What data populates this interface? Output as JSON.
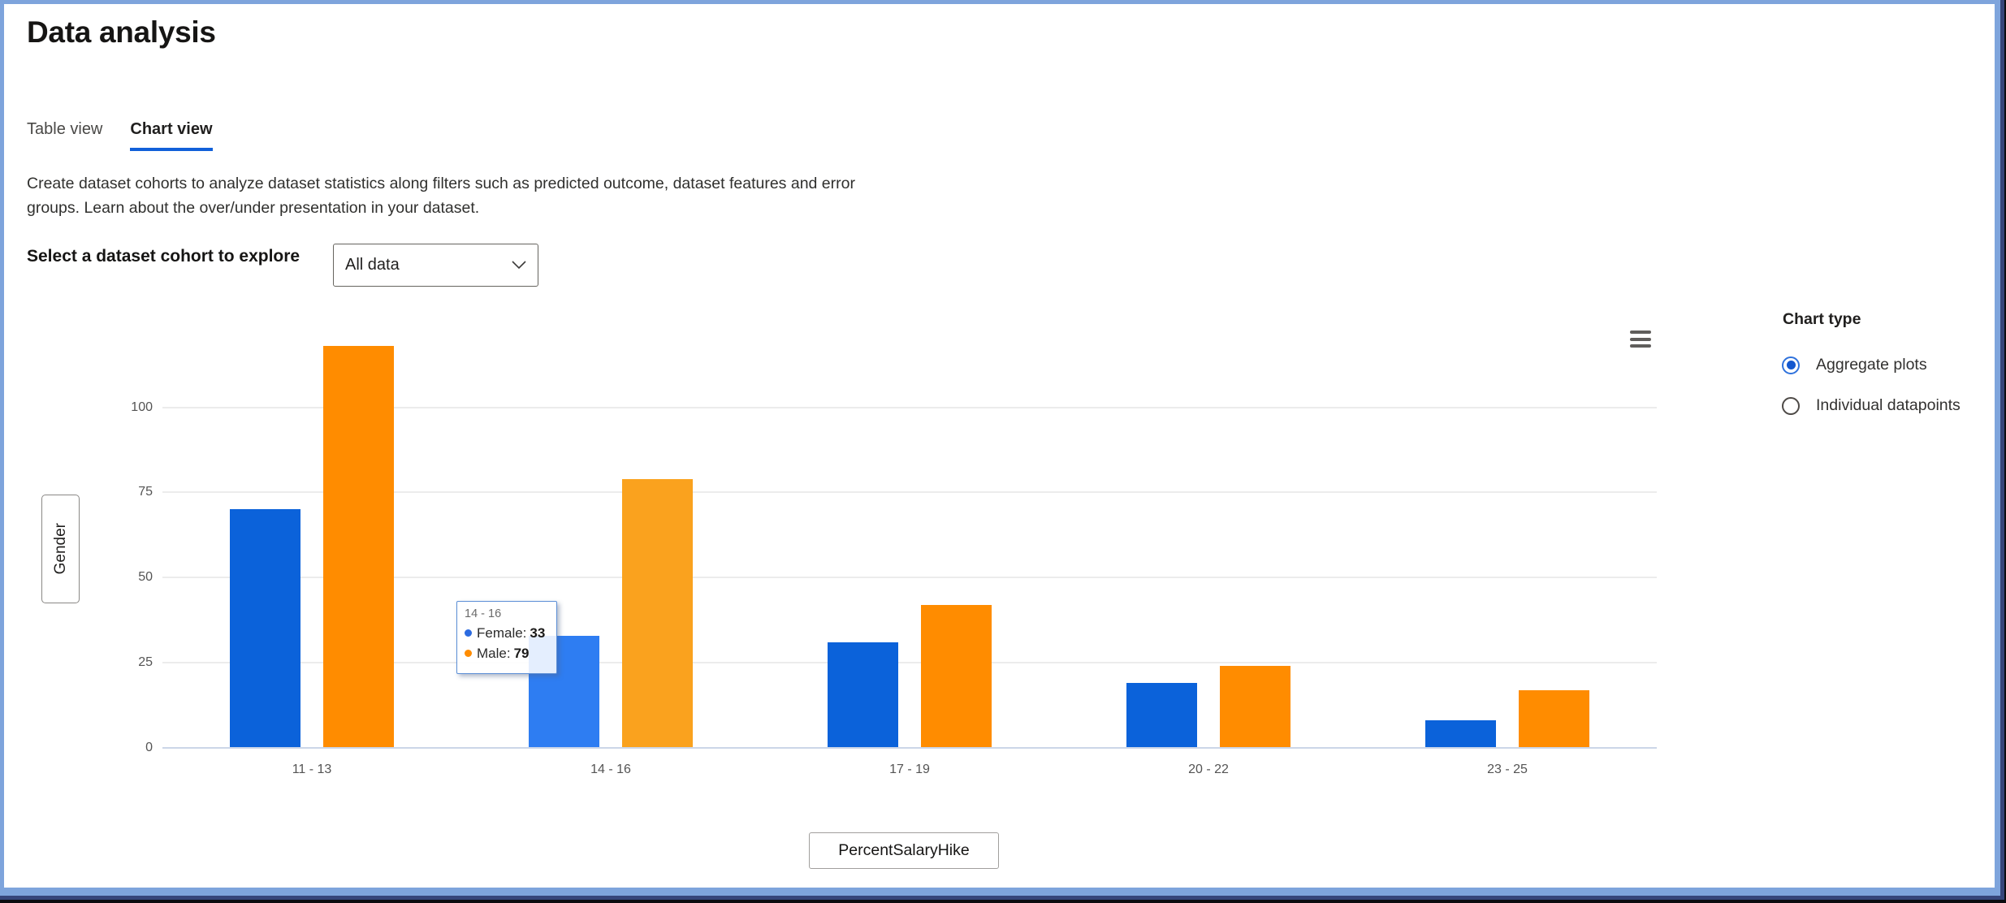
{
  "window": {
    "title": "Data analysis"
  },
  "tabs": [
    {
      "label": "Table view",
      "active": false
    },
    {
      "label": "Chart view",
      "active": true
    }
  ],
  "description": {
    "lines": [
      "Create dataset cohorts to analyze dataset statistics along filters such as predicted outcome, dataset features and error",
      "groups. Learn about the over/under presentation in your dataset."
    ]
  },
  "cohort_selector": {
    "label": "Select a dataset cohort to explore",
    "value": "All data"
  },
  "chart_type_panel": {
    "title": "Chart type",
    "options": [
      {
        "label": "Aggregate plots",
        "selected": true
      },
      {
        "label": "Individual datapoints",
        "selected": false
      }
    ]
  },
  "axis_buttons": {
    "y_label": "Gender",
    "x_label": "PercentSalaryHike"
  },
  "tooltip": {
    "title": "14 - 16",
    "rows": [
      {
        "label": "Female:",
        "value": "33",
        "color": "#2b6be0"
      },
      {
        "label": "Male:",
        "value": "79",
        "color": "#ff8c00"
      }
    ]
  },
  "colors": {
    "accent": "#1160d9",
    "frame": "#7ea4dc",
    "bar_female": "#0b62da",
    "bar_female_highlight": "#2e7df2",
    "bar_male": "#ff8c00",
    "bar_male_highlight": "#faa21e"
  },
  "chart_data": {
    "type": "bar",
    "categories": [
      "11 - 13",
      "14 - 16",
      "17 - 19",
      "20 - 22",
      "23 - 25"
    ],
    "series": [
      {
        "name": "Female",
        "color": "#0b62da",
        "highlight_color": "#2e7df2",
        "values": [
          70,
          33,
          31,
          19,
          8
        ]
      },
      {
        "name": "Male",
        "color": "#ff8c00",
        "highlight_color": "#faa21e",
        "values": [
          118,
          79,
          42,
          24,
          17
        ]
      }
    ],
    "yticks": [
      0,
      25,
      50,
      75,
      100
    ],
    "ylim": [
      0,
      123
    ],
    "xlabel": "PercentSalaryHike",
    "ylabel": "Gender",
    "highlighted_category": "14 - 16",
    "highlighted_index": 1,
    "grid": true,
    "legend": "none"
  }
}
